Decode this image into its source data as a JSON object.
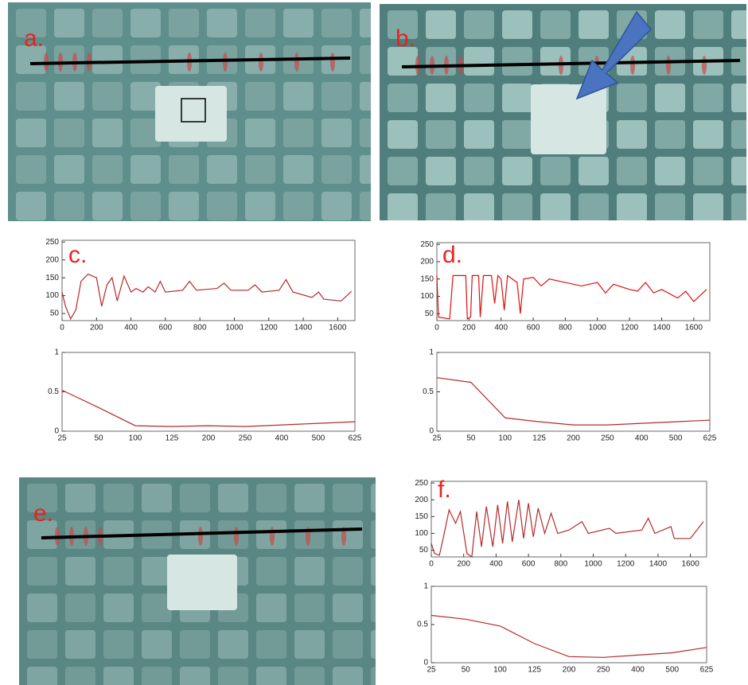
{
  "images": [
    {
      "label": "a."
    },
    {
      "label": "b."
    },
    {
      "label": "e."
    }
  ],
  "chart_data": [
    {
      "type": "line",
      "panel_label": "c.",
      "color": "#b52a2a",
      "x": [
        0,
        20,
        50,
        80,
        110,
        150,
        200,
        230,
        260,
        290,
        320,
        360,
        400,
        430,
        470,
        500,
        540,
        570,
        600,
        700,
        740,
        780,
        900,
        940,
        980,
        1080,
        1120,
        1160,
        1260,
        1300,
        1340,
        1450,
        1490,
        1520,
        1620,
        1680
      ],
      "values": [
        110,
        70,
        35,
        60,
        140,
        160,
        150,
        70,
        130,
        150,
        85,
        155,
        110,
        120,
        110,
        125,
        110,
        140,
        110,
        115,
        140,
        115,
        120,
        135,
        115,
        115,
        130,
        110,
        115,
        145,
        110,
        95,
        110,
        90,
        85,
        112
      ],
      "xlim": [
        0,
        1700
      ],
      "xticks": [
        0,
        200,
        400,
        600,
        800,
        1000,
        1200,
        1400,
        1600
      ],
      "ylim": [
        30,
        255
      ],
      "yticks": [
        50,
        100,
        150,
        200,
        250
      ]
    },
    {
      "type": "line",
      "color": "#b52a2a",
      "categories": [
        "25",
        "50",
        "100",
        "125",
        "200",
        "250",
        "400",
        "500",
        "625"
      ],
      "values": [
        0.52,
        0.3,
        0.07,
        0.06,
        0.07,
        0.06,
        0.08,
        0.1,
        0.12
      ],
      "ylim": [
        0,
        1
      ],
      "yticks": [
        0,
        0.5,
        1
      ]
    },
    {
      "type": "line",
      "panel_label": "d.",
      "color": "#e01010",
      "x": [
        0,
        10,
        80,
        100,
        180,
        190,
        210,
        220,
        260,
        270,
        290,
        340,
        360,
        380,
        400,
        420,
        440,
        500,
        520,
        540,
        600,
        650,
        700,
        800,
        900,
        1000,
        1050,
        1100,
        1200,
        1250,
        1300,
        1350,
        1400,
        1500,
        1550,
        1600,
        1680
      ],
      "values": [
        160,
        40,
        35,
        160,
        160,
        35,
        40,
        160,
        160,
        40,
        160,
        160,
        80,
        160,
        150,
        60,
        160,
        140,
        50,
        150,
        155,
        130,
        150,
        140,
        130,
        140,
        110,
        135,
        120,
        115,
        140,
        110,
        120,
        95,
        115,
        85,
        120
      ],
      "xlim": [
        0,
        1700
      ],
      "xticks": [
        0,
        200,
        400,
        600,
        800,
        1000,
        1200,
        1400,
        1600
      ],
      "ylim": [
        30,
        255
      ],
      "yticks": [
        50,
        100,
        150,
        200,
        250
      ]
    },
    {
      "type": "line",
      "color": "#b52a2a",
      "categories": [
        "25",
        "50",
        "100",
        "125",
        "200",
        "250",
        "400",
        "500",
        "625"
      ],
      "values": [
        0.68,
        0.62,
        0.17,
        0.12,
        0.08,
        0.08,
        0.1,
        0.12,
        0.14
      ],
      "ylim": [
        0,
        1
      ],
      "yticks": [
        0,
        0.5,
        1
      ]
    },
    {
      "type": "line",
      "panel_label": "f.",
      "color": "#b52a2a",
      "x": [
        0,
        20,
        50,
        80,
        110,
        150,
        180,
        220,
        250,
        280,
        310,
        340,
        380,
        410,
        440,
        470,
        500,
        540,
        570,
        600,
        630,
        660,
        700,
        740,
        780,
        850,
        930,
        970,
        1100,
        1140,
        1300,
        1340,
        1380,
        1480,
        1500,
        1600,
        1680
      ],
      "values": [
        70,
        40,
        35,
        100,
        170,
        130,
        165,
        40,
        30,
        165,
        60,
        180,
        60,
        185,
        70,
        195,
        75,
        200,
        85,
        190,
        90,
        175,
        100,
        160,
        100,
        110,
        135,
        100,
        115,
        100,
        110,
        145,
        100,
        120,
        85,
        85,
        135
      ],
      "xlim": [
        0,
        1700
      ],
      "xticks": [
        0,
        200,
        400,
        600,
        800,
        1000,
        1200,
        1400,
        1600
      ],
      "ylim": [
        30,
        255
      ],
      "yticks": [
        50,
        100,
        150,
        200,
        250
      ]
    },
    {
      "type": "line",
      "color": "#b52a2a",
      "categories": [
        "25",
        "50",
        "100",
        "125",
        "200",
        "250",
        "400",
        "500",
        "625"
      ],
      "values": [
        0.62,
        0.57,
        0.48,
        0.25,
        0.08,
        0.07,
        0.1,
        0.13,
        0.2
      ],
      "ylim": [
        0,
        1
      ],
      "yticks": [
        0,
        0.5,
        1
      ]
    }
  ]
}
